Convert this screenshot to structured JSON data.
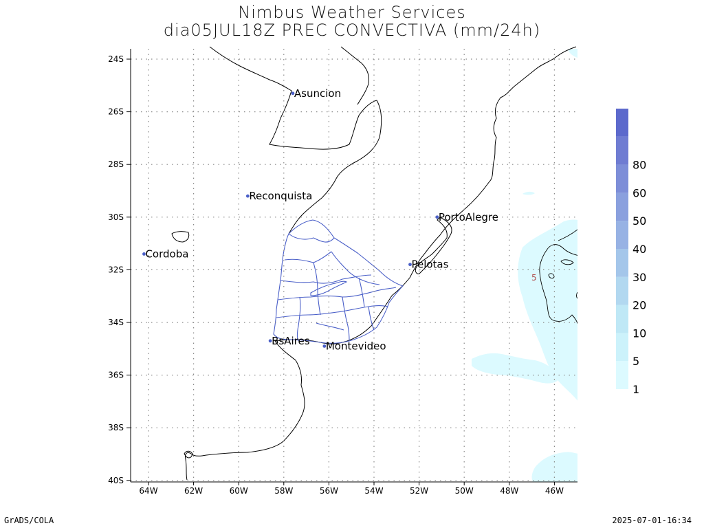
{
  "title": {
    "line1": "Nimbus Weather Services",
    "line2": "dia05JUL18Z PREC CONVECTIVA (mm/24h)"
  },
  "axes": {
    "lat_labels": [
      "24S",
      "26S",
      "28S",
      "30S",
      "32S",
      "34S",
      "36S",
      "38S",
      "40S"
    ],
    "lon_labels": [
      "64W",
      "62W",
      "60W",
      "58W",
      "56W",
      "54W",
      "52W",
      "50W",
      "48W",
      "46W"
    ],
    "lat_range": [
      -40,
      -23.6
    ],
    "lon_range": [
      -65,
      -45
    ],
    "grid": "dotted"
  },
  "cities": [
    {
      "name": "Asuncion",
      "lon": -57.6,
      "lat": -25.3
    },
    {
      "name": "Reconquista",
      "lon": -59.6,
      "lat": -29.2
    },
    {
      "name": "PortoAlegre",
      "lon": -51.2,
      "lat": -30.0
    },
    {
      "name": "Cordoba",
      "lon": -64.2,
      "lat": -31.4
    },
    {
      "name": "Pelotas",
      "lon": -52.4,
      "lat": -31.8
    },
    {
      "name": "BsAires",
      "lon": -58.6,
      "lat": -34.7
    },
    {
      "name": "Montevideo",
      "lon": -56.2,
      "lat": -34.9
    }
  ],
  "colorbar": {
    "labels": [
      "1",
      "5",
      "10",
      "20",
      "30",
      "40",
      "50",
      "60",
      "80"
    ],
    "colors": [
      "#dcfaff",
      "#ccf2fb",
      "#bfe8f6",
      "#b2d8f0",
      "#a4c6ea",
      "#97b2e4",
      "#8aa0de",
      "#7d8ed8",
      "#6f7cd2",
      "#5c69cc"
    ]
  },
  "contour_labels": [
    {
      "text": "5",
      "lon": -46.9,
      "lat": -32.3
    }
  ],
  "precip_color": "#dcfaff",
  "uruguay_border_color": "#4a5fc8",
  "footer": {
    "left": "GrADS/COLA",
    "right": "2025-07-01-16:34"
  }
}
